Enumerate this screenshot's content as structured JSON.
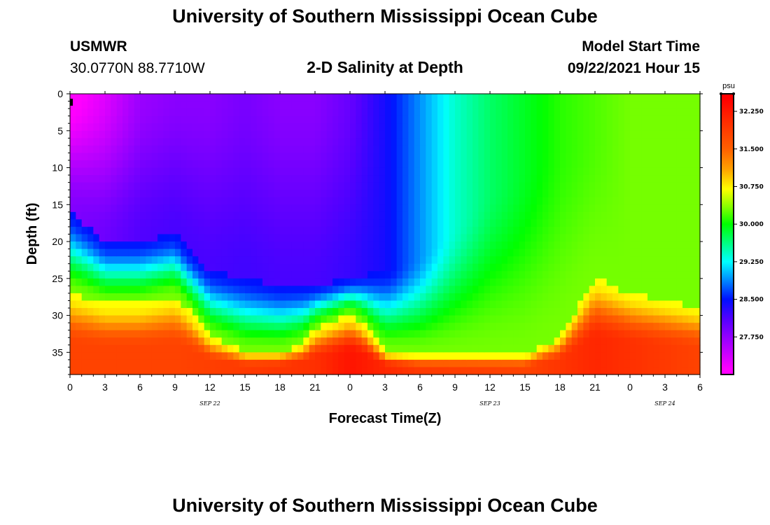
{
  "page": {
    "title_top": "University of Southern Mississippi Ocean Cube",
    "title_bottom": "University of Southern Mississippi Ocean Cube",
    "station_name": "USMWR",
    "station_coords": "30.0770N  88.7710W",
    "plot_title": "2-D Salinity at Depth",
    "model_start_label": "Model Start Time",
    "model_start_value": "09/22/2021 Hour 15"
  },
  "colors": {
    "background": "#ffffff",
    "axis": "#000000"
  },
  "chart_data": {
    "type": "heatmap",
    "title": "2-D Salinity at Depth",
    "xlabel": "Forecast Time(Z)",
    "ylabel": "Depth (ft)",
    "x_range_hours": [
      0,
      54
    ],
    "x_tick_labels": [
      "0",
      "3",
      "6",
      "9",
      "12",
      "15",
      "18",
      "21",
      "0",
      "3",
      "6",
      "9",
      "12",
      "15",
      "18",
      "21",
      "0",
      "3",
      "6"
    ],
    "x_tick_hours": [
      0,
      3,
      6,
      9,
      12,
      15,
      18,
      21,
      24,
      27,
      30,
      33,
      36,
      39,
      42,
      45,
      48,
      51,
      54
    ],
    "date_labels": [
      {
        "text": "SEP 22",
        "hour": 12
      },
      {
        "text": "SEP 23",
        "hour": 36
      },
      {
        "text": "SEP 24",
        "hour": 51
      }
    ],
    "y_range_ft": [
      0,
      38
    ],
    "y_ticks": [
      "0",
      "5",
      "10",
      "15",
      "20",
      "25",
      "30",
      "35"
    ],
    "colorbar": {
      "unit": "psu",
      "min": 27.0,
      "max": 32.6,
      "labels": [
        "32.250",
        "31.500",
        "30.750",
        "30.000",
        "29.250",
        "28.500",
        "27.750"
      ],
      "stops": [
        {
          "value": 27.1,
          "color": "#ff00ff"
        },
        {
          "value": 27.7,
          "color": "#9b00ff"
        },
        {
          "value": 28.1,
          "color": "#5500ff"
        },
        {
          "value": 28.5,
          "color": "#0010ff"
        },
        {
          "value": 28.9,
          "color": "#0090ff"
        },
        {
          "value": 29.25,
          "color": "#00ffff"
        },
        {
          "value": 29.6,
          "color": "#00ff88"
        },
        {
          "value": 30.0,
          "color": "#00ff00"
        },
        {
          "value": 30.35,
          "color": "#88ff00"
        },
        {
          "value": 30.7,
          "color": "#ffff00"
        },
        {
          "value": 31.1,
          "color": "#ffa000"
        },
        {
          "value": 31.5,
          "color": "#ff6000"
        },
        {
          "value": 32.0,
          "color": "#ff3000"
        },
        {
          "value": 32.5,
          "color": "#ff0000"
        }
      ]
    },
    "surface_salinity_psu": [
      [
        0,
        27.0
      ],
      [
        3,
        27.3
      ],
      [
        6,
        27.7
      ],
      [
        9,
        27.8
      ],
      [
        12,
        27.8
      ],
      [
        15,
        27.9
      ],
      [
        18,
        27.8
      ],
      [
        21,
        27.8
      ],
      [
        24,
        28.0
      ],
      [
        27,
        28.4
      ],
      [
        30,
        28.9
      ],
      [
        33,
        29.4
      ],
      [
        36,
        29.7
      ],
      [
        39,
        29.9
      ],
      [
        42,
        30.1
      ],
      [
        45,
        30.2
      ],
      [
        48,
        30.3
      ],
      [
        51,
        30.3
      ],
      [
        54,
        30.3
      ]
    ],
    "halocline_depth_ft": [
      [
        0,
        18
      ],
      [
        3,
        22
      ],
      [
        6,
        22
      ],
      [
        9,
        21
      ],
      [
        10,
        23
      ],
      [
        12,
        26
      ],
      [
        15,
        27
      ],
      [
        18,
        28
      ],
      [
        21,
        28
      ],
      [
        24,
        27
      ],
      [
        27,
        26
      ],
      [
        30,
        24
      ],
      [
        33,
        20
      ],
      [
        36,
        15
      ],
      [
        39,
        12
      ],
      [
        42,
        9
      ],
      [
        45,
        8
      ],
      [
        48,
        8
      ],
      [
        51,
        8
      ],
      [
        54,
        8
      ]
    ],
    "bottom_layer_top_ft": [
      [
        0,
        27
      ],
      [
        3,
        28.5
      ],
      [
        6,
        28.5
      ],
      [
        9,
        27.5
      ],
      [
        10,
        29
      ],
      [
        12,
        33
      ],
      [
        15,
        35
      ],
      [
        18,
        35
      ],
      [
        20,
        34
      ],
      [
        21,
        32
      ],
      [
        24,
        30
      ],
      [
        25,
        31
      ],
      [
        27,
        35
      ],
      [
        30,
        35.5
      ],
      [
        33,
        35.5
      ],
      [
        36,
        35.5
      ],
      [
        39,
        35.5
      ],
      [
        42,
        33
      ],
      [
        45,
        25
      ],
      [
        48,
        27
      ],
      [
        51,
        28
      ],
      [
        54,
        29
      ]
    ],
    "bottom_salinity_psu": [
      [
        0,
        31.8
      ],
      [
        9,
        31.8
      ],
      [
        21,
        32.0
      ],
      [
        24,
        32.3
      ],
      [
        30,
        31.9
      ],
      [
        39,
        31.8
      ],
      [
        45,
        32.1
      ],
      [
        48,
        32.0
      ],
      [
        54,
        31.8
      ]
    ]
  }
}
